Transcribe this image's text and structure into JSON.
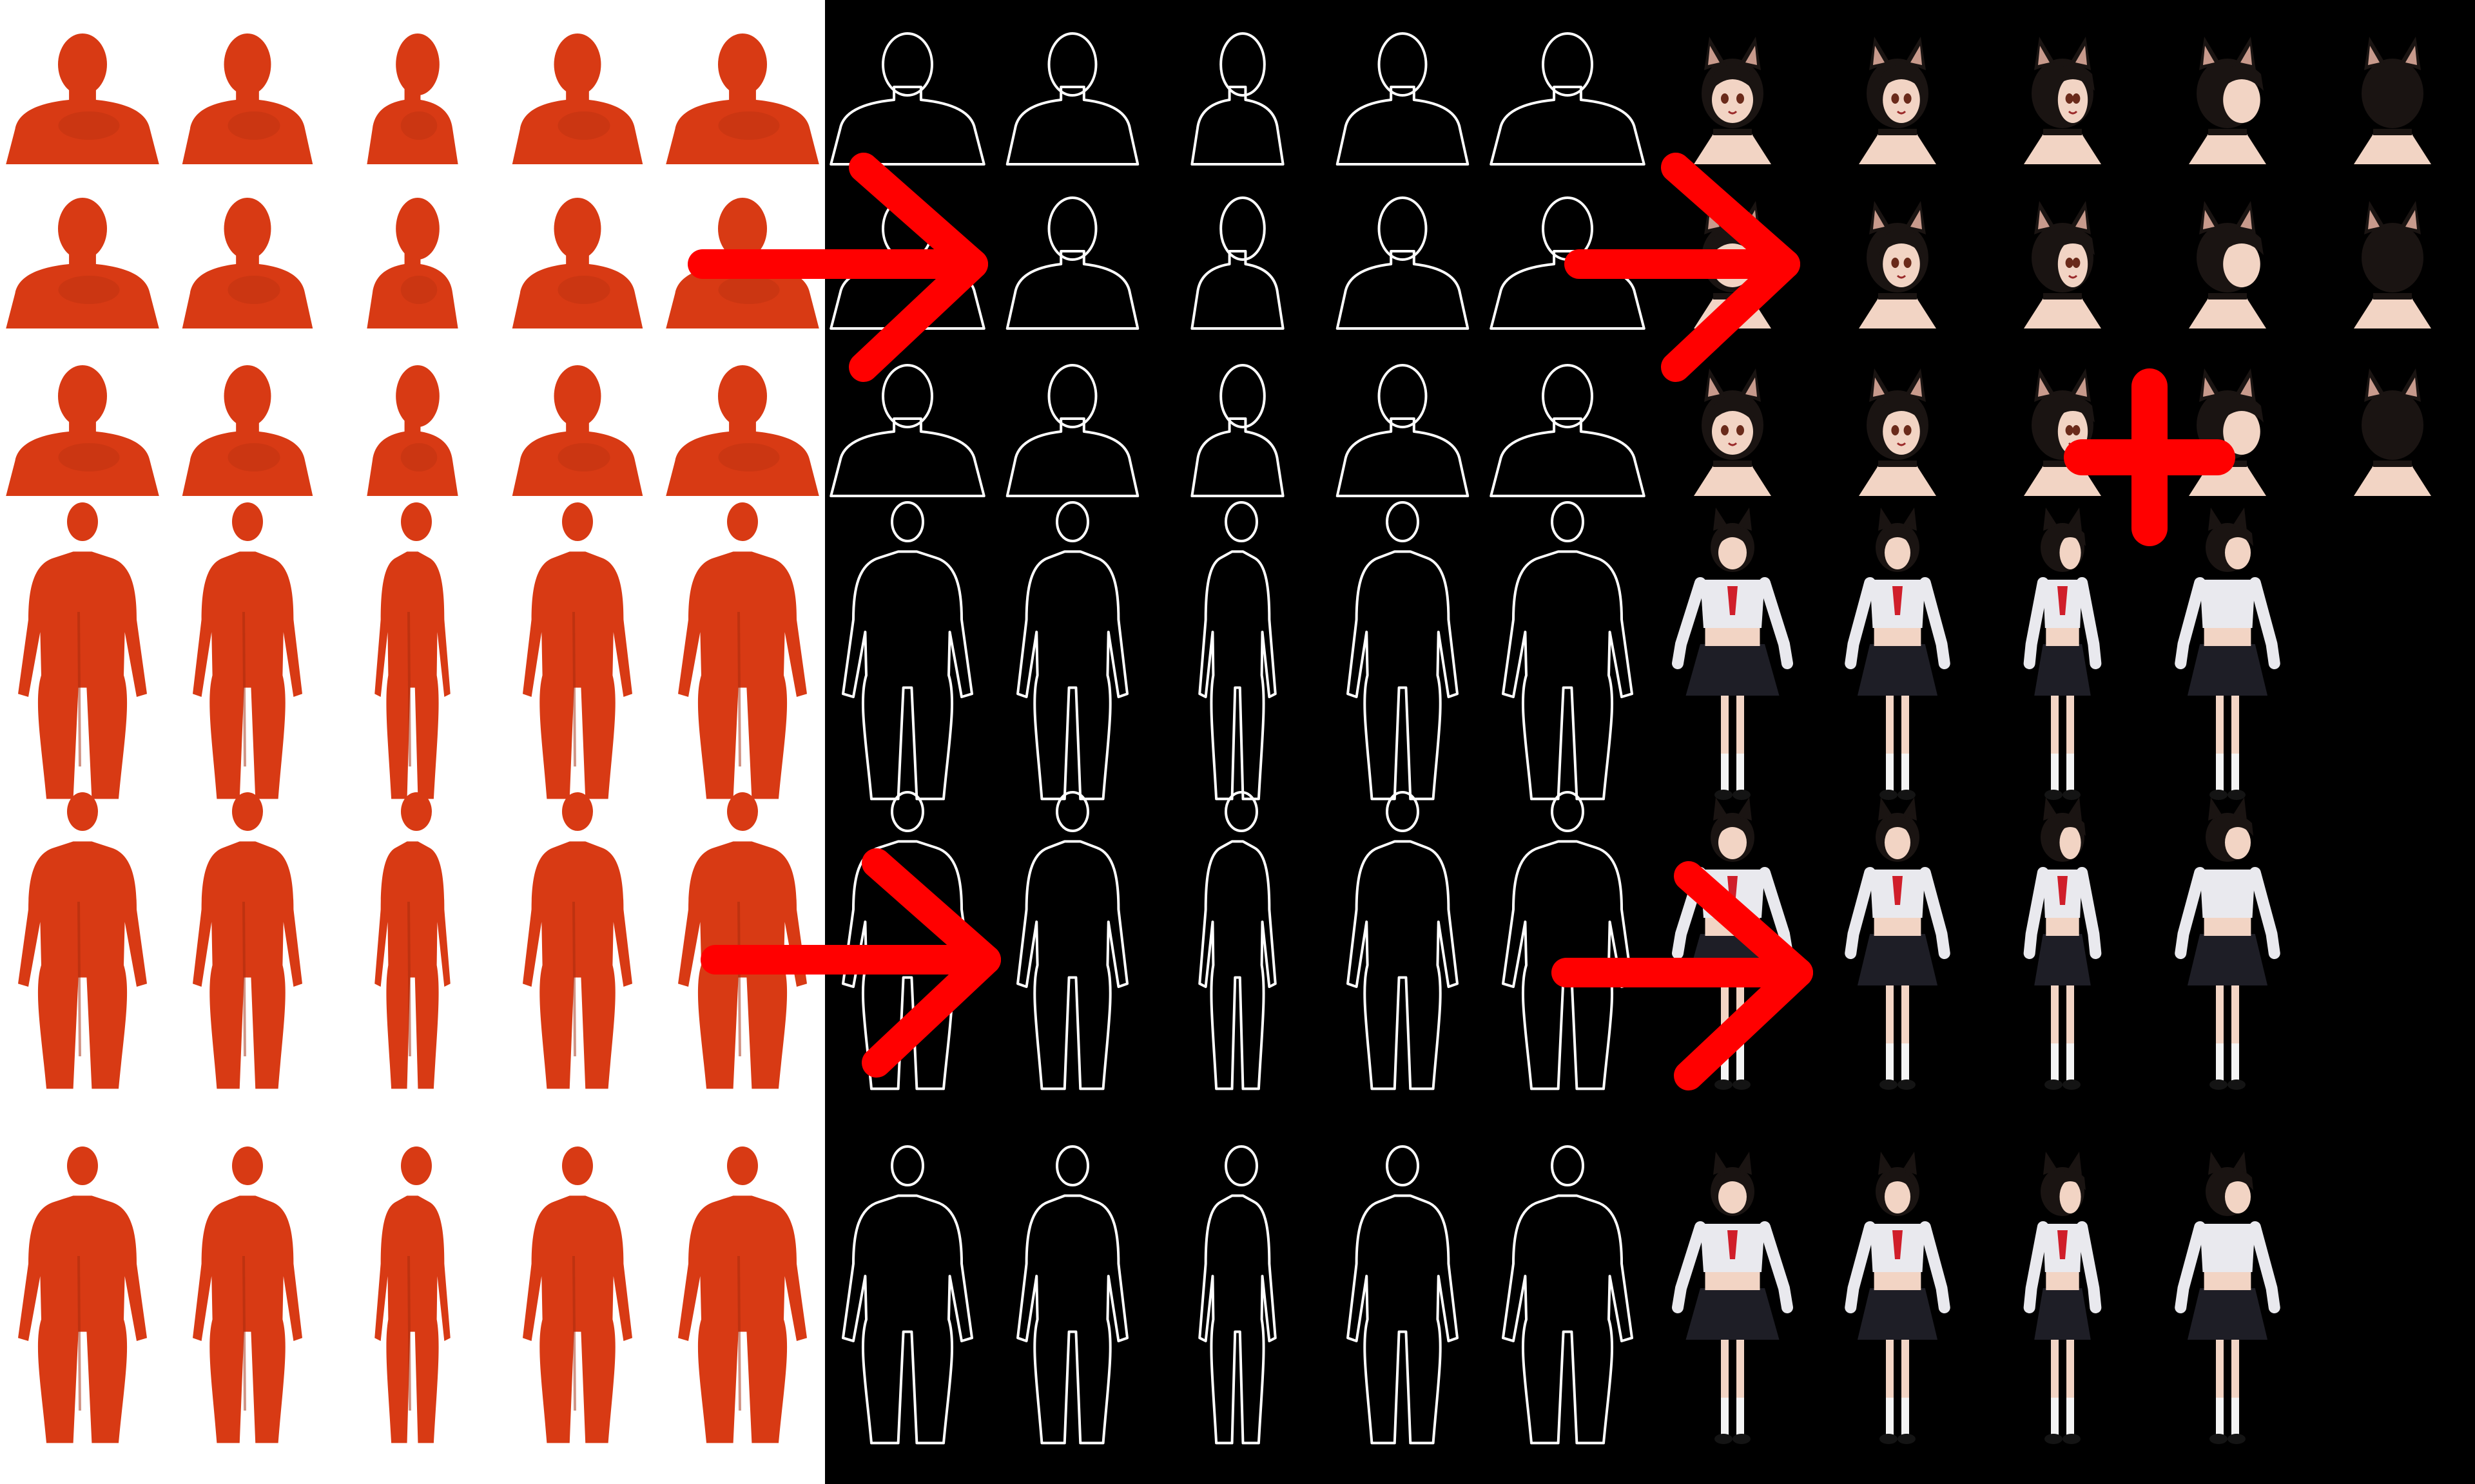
{
  "panels": [
    {
      "id": "mannequin-renders",
      "style": "mannequin",
      "background": "#ffffff",
      "fill": "#d83a14",
      "shade": "#a32a0c",
      "rows": [
        {
          "framing": "bust",
          "views": [
            "front",
            "front-right",
            "side",
            "back-right",
            "back"
          ]
        },
        {
          "framing": "bust",
          "views": [
            "front",
            "front-right",
            "side",
            "back-right",
            "back"
          ]
        },
        {
          "framing": "bust",
          "views": [
            "front",
            "front-right",
            "side",
            "back-right",
            "back"
          ]
        },
        {
          "framing": "full-body",
          "views": [
            "front",
            "front-right",
            "side",
            "back-right",
            "back"
          ]
        },
        {
          "framing": "full-body",
          "views": [
            "front",
            "front-right",
            "side",
            "back-right",
            "back"
          ]
        },
        {
          "framing": "full-body",
          "views": [
            "front",
            "front-right",
            "side",
            "back-right",
            "back"
          ]
        }
      ]
    },
    {
      "id": "line-art-sketches",
      "style": "outline",
      "background": "#000000",
      "stroke": "#ffffff",
      "rows": [
        {
          "framing": "bust",
          "views": [
            "front",
            "front-right",
            "side",
            "back-right",
            "back"
          ]
        },
        {
          "framing": "bust",
          "views": [
            "front",
            "front-right",
            "side",
            "back-right",
            "back"
          ]
        },
        {
          "framing": "bust",
          "views": [
            "front",
            "front-right",
            "side",
            "back-right",
            "back"
          ]
        },
        {
          "framing": "full-body",
          "views": [
            "front",
            "front-right",
            "side",
            "back-right",
            "back"
          ]
        },
        {
          "framing": "full-body",
          "views": [
            "front",
            "front-right",
            "side",
            "back-right",
            "back"
          ]
        },
        {
          "framing": "full-body",
          "views": [
            "front",
            "front-right",
            "side",
            "back-right",
            "back"
          ]
        }
      ]
    },
    {
      "id": "anime-character-renders",
      "style": "character",
      "background": "#000000",
      "skin": "#f2d4c4",
      "hair": "#1a1412",
      "blouse": "#e9e9ee",
      "skirt": "#1e1e26",
      "ribbon": "#d01e2a",
      "rows": [
        {
          "framing": "head",
          "views": [
            "front",
            "front-right",
            "side",
            "back-right",
            "back"
          ]
        },
        {
          "framing": "head",
          "views": [
            "front",
            "front-right",
            "side",
            "back-right",
            "back"
          ]
        },
        {
          "framing": "head",
          "views": [
            "front",
            "front-right",
            "side",
            "back-right",
            "back"
          ]
        },
        {
          "framing": "full-body",
          "views": [
            "front",
            "front-right",
            "side",
            "back-right"
          ]
        },
        {
          "framing": "full-body",
          "views": [
            "front",
            "front-right",
            "side",
            "back-right"
          ]
        },
        {
          "framing": "full-body",
          "views": [
            "front",
            "front-right",
            "side",
            "back-right"
          ]
        }
      ]
    }
  ],
  "annotations": {
    "color": "#ff0000",
    "arrows": [
      {
        "name": "arrow-upper-mannequin-to-sketch",
        "connects": [
          "mannequin-renders",
          "line-art-sketches"
        ]
      },
      {
        "name": "arrow-upper-sketch-to-character",
        "connects": [
          "line-art-sketches",
          "anime-character-renders"
        ]
      },
      {
        "name": "arrow-lower-mannequin-to-sketch",
        "connects": [
          "mannequin-renders",
          "line-art-sketches"
        ]
      },
      {
        "name": "arrow-lower-sketch-to-character",
        "connects": [
          "line-art-sketches",
          "anime-character-renders"
        ]
      }
    ],
    "plus": "+"
  }
}
